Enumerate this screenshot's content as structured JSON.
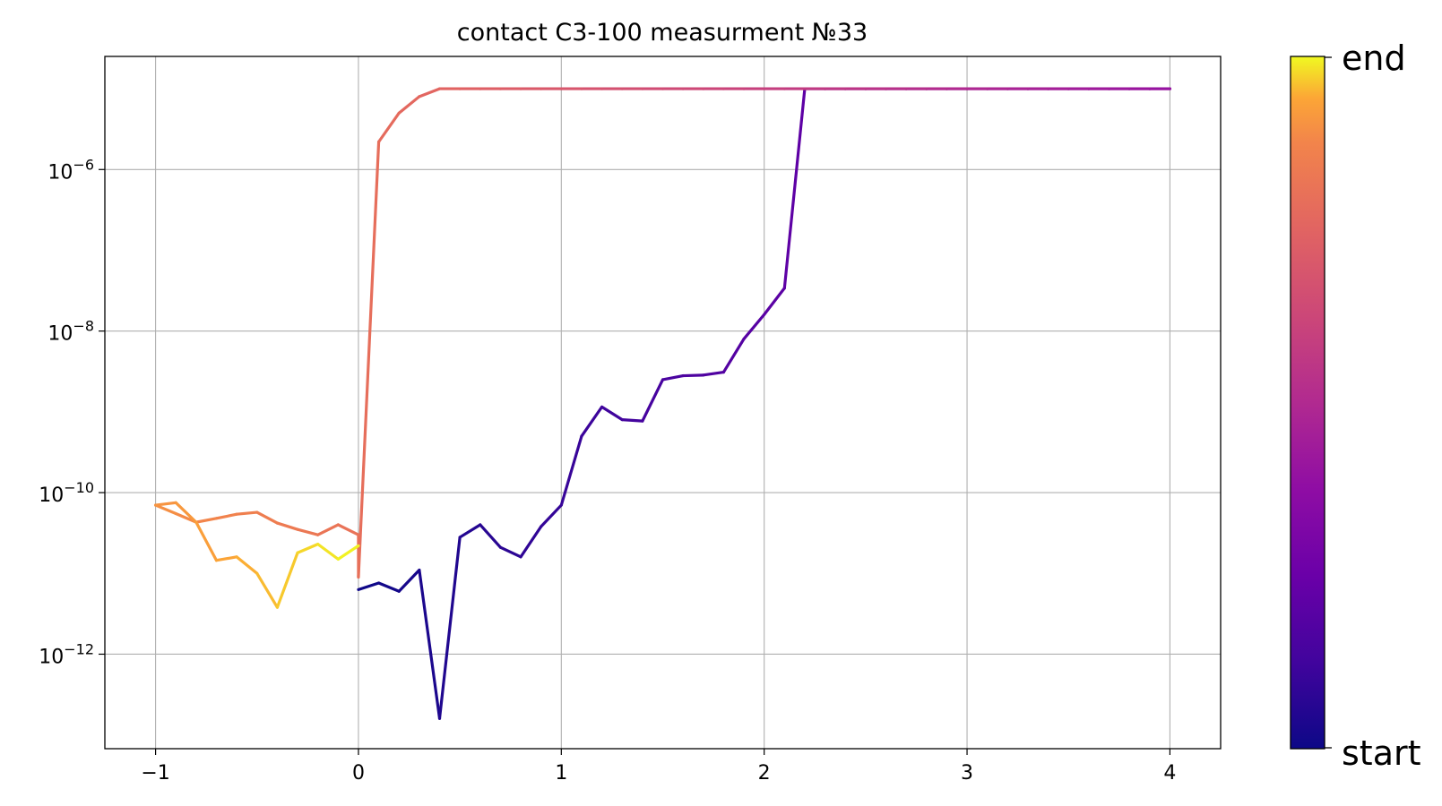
{
  "chart_data": {
    "type": "line",
    "title": "contact C3-100 measurment №33",
    "xlabel": "",
    "ylabel": "",
    "xlim": [
      -1.25,
      4.25
    ],
    "ylim_log10": [
      -13.17,
      -4.6
    ],
    "yscale": "log",
    "grid": true,
    "x_ticks": [
      -1,
      0,
      1,
      2,
      3,
      4
    ],
    "x_tick_labels": [
      "−1",
      "0",
      "1",
      "2",
      "3",
      "4"
    ],
    "y_ticks_log10": [
      -6,
      -8,
      -10,
      -12
    ],
    "y_tick_labels": [
      {
        "base": "10",
        "exp": "−6"
      },
      {
        "base": "10",
        "exp": "−8"
      },
      {
        "base": "10",
        "exp": "−10"
      },
      {
        "base": "10",
        "exp": "−12"
      }
    ],
    "colormap": "plasma",
    "colorbar": {
      "min_label": "start",
      "max_label": "end"
    },
    "series": [
      {
        "x": [
          0.0,
          0.1,
          0.2,
          0.3,
          0.4,
          0.5,
          0.6,
          0.7,
          0.8,
          0.9,
          1.0,
          1.1,
          1.2,
          1.3,
          1.4,
          1.5,
          1.6,
          1.7,
          1.8,
          1.9,
          2.0,
          2.1,
          2.2,
          2.3,
          2.4,
          2.5,
          2.6,
          2.7,
          2.8,
          2.9,
          3.0,
          3.1,
          3.2,
          3.3,
          3.4,
          3.5,
          3.6,
          3.7,
          3.8,
          3.9,
          4.0,
          3.9,
          3.8,
          3.7,
          3.6,
          3.5,
          3.4,
          3.3,
          3.2,
          3.1,
          3.0,
          2.9,
          2.8,
          2.7,
          2.6,
          2.5,
          2.4,
          2.3,
          2.2,
          2.1,
          2.0,
          1.9,
          1.8,
          1.7,
          1.6,
          1.5,
          1.4,
          1.3,
          1.2,
          1.1,
          1.0,
          0.9,
          0.8,
          0.7,
          0.6,
          0.5,
          0.4,
          0.3,
          0.2,
          0.1,
          0.0,
          0.0,
          -0.1,
          -0.2,
          -0.3,
          -0.4,
          -0.5,
          -0.6,
          -0.7,
          -0.8,
          -0.9,
          -1.0,
          -0.9,
          -0.8,
          -0.7,
          -0.6,
          -0.5,
          -0.4,
          -0.3,
          -0.2,
          -0.1,
          0.0
        ],
        "y": [
          6.3e-12,
          7.6e-12,
          6e-12,
          1.1e-11,
          1.6e-13,
          2.8e-11,
          4e-11,
          2.1e-11,
          1.6e-11,
          3.8e-11,
          7e-11,
          5e-10,
          1.15e-09,
          8e-10,
          7.7e-10,
          2.5e-09,
          2.8e-09,
          2.85e-09,
          3.1e-09,
          8e-09,
          1.6e-08,
          3.4e-08,
          1e-05,
          1e-05,
          1e-05,
          1e-05,
          1e-05,
          1e-05,
          1e-05,
          1e-05,
          1e-05,
          1e-05,
          1e-05,
          1e-05,
          1e-05,
          1e-05,
          1e-05,
          1e-05,
          1e-05,
          1e-05,
          1e-05,
          1e-05,
          1e-05,
          1e-05,
          1e-05,
          1e-05,
          1e-05,
          1e-05,
          1e-05,
          1e-05,
          1e-05,
          1e-05,
          1e-05,
          1e-05,
          1e-05,
          1e-05,
          1e-05,
          1e-05,
          1e-05,
          1e-05,
          1e-05,
          1e-05,
          1e-05,
          1e-05,
          1e-05,
          1e-05,
          1e-05,
          1e-05,
          1e-05,
          1e-05,
          1e-05,
          1e-05,
          1e-05,
          1e-05,
          1e-05,
          1e-05,
          1e-05,
          8e-06,
          5e-06,
          2.2e-06,
          9e-12,
          3e-11,
          4e-11,
          3e-11,
          3.5e-11,
          4.2e-11,
          5.7e-11,
          5.4e-11,
          4.8e-11,
          4.3e-11,
          5.5e-11,
          7e-11,
          7.5e-11,
          4.3e-11,
          1.45e-11,
          1.6e-11,
          1e-11,
          3.8e-12,
          1.8e-11,
          2.3e-11,
          1.5e-11,
          2.2e-11
        ]
      }
    ]
  }
}
